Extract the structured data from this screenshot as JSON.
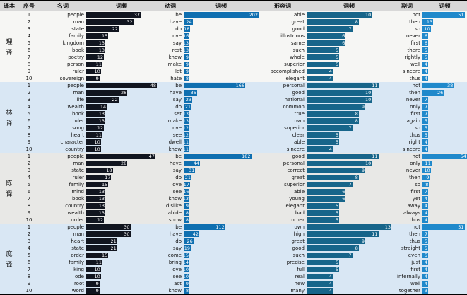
{
  "colors": {
    "noun_bar": "#11151f",
    "verb_bar": "#0f6fb0",
    "adjective_bar": "#17658a",
    "adverb_bar": "#2089cb",
    "header_bg": "#d8d8d8",
    "group_bgs": [
      "#f6f6f4",
      "#d9e7f4",
      "#e8e8e6",
      "#d9e7f4"
    ]
  },
  "chart_data": {
    "type": "table",
    "title": "",
    "columns": [
      "译本",
      "序号",
      "名词",
      "词频",
      "动词",
      "词频",
      "形容词",
      "词频",
      "副词",
      "词频"
    ],
    "axis_max": {
      "noun": 48,
      "verb": 202,
      "adjective": 13,
      "adverb": 54
    },
    "groups": [
      {
        "translator": "理译",
        "rows": [
          {
            "index": 1,
            "noun": "people",
            "noun_freq": 37,
            "verb": "be",
            "verb_freq": 202,
            "adjective": "able",
            "adjective_freq": 10,
            "adverb": "not",
            "adverb_freq": 51
          },
          {
            "index": 2,
            "noun": "man",
            "noun_freq": 32,
            "verb": "have",
            "verb_freq": 24,
            "adjective": "great",
            "adjective_freq": 8,
            "adverb": "then",
            "adverb_freq": 13
          },
          {
            "index": 3,
            "noun": "state",
            "noun_freq": 22,
            "verb": "do",
            "verb_freq": 18,
            "adjective": "good",
            "adjective_freq": 7,
            "adverb": "so",
            "adverb_freq": 10
          },
          {
            "index": 4,
            "noun": "family",
            "noun_freq": 15,
            "verb": "love",
            "verb_freq": 16,
            "adjective": "illustrious",
            "adjective_freq": 6,
            "adverb": "never",
            "adverb_freq": 6
          },
          {
            "index": 5,
            "noun": "kingdom",
            "noun_freq": 13,
            "verb": "say",
            "verb_freq": 13,
            "adjective": "same",
            "adjective_freq": 6,
            "adverb": "first",
            "adverb_freq": 6
          },
          {
            "index": 6,
            "noun": "book",
            "noun_freq": 13,
            "verb": "rest",
            "verb_freq": 13,
            "adjective": "such",
            "adjective_freq": 5,
            "adverb": "there",
            "adverb_freq": 5
          },
          {
            "index": 7,
            "noun": "poetry",
            "noun_freq": 12,
            "verb": "know",
            "verb_freq": 9,
            "adjective": "whole",
            "adjective_freq": 5,
            "adverb": "rightly",
            "adverb_freq": 5
          },
          {
            "index": 8,
            "noun": "person",
            "noun_freq": 11,
            "verb": "make",
            "verb_freq": 9,
            "adjective": "superior",
            "adjective_freq": 5,
            "adverb": "well",
            "adverb_freq": 4
          },
          {
            "index": 9,
            "noun": "ruler",
            "noun_freq": 10,
            "verb": "let",
            "verb_freq": 9,
            "adjective": "accomplished",
            "adjective_freq": 4,
            "adverb": "sincere",
            "adverb_freq": 4
          },
          {
            "index": 10,
            "noun": "sovereign",
            "noun_freq": 9,
            "verb": "hate",
            "verb_freq": 8,
            "adjective": "elegant",
            "adjective_freq": 4,
            "adverb": "thus",
            "adverb_freq": 4
          }
        ]
      },
      {
        "translator": "林译",
        "rows": [
          {
            "index": 1,
            "noun": "people",
            "noun_freq": 48,
            "verb": "be",
            "verb_freq": 166,
            "adjective": "personal",
            "adjective_freq": 11,
            "adverb": "not",
            "adverb_freq": 38
          },
          {
            "index": 2,
            "noun": "man",
            "noun_freq": 28,
            "verb": "have",
            "verb_freq": 36,
            "adjective": "good",
            "adjective_freq": 10,
            "adverb": "then",
            "adverb_freq": 26
          },
          {
            "index": 3,
            "noun": "life",
            "noun_freq": 22,
            "verb": "say",
            "verb_freq": 23,
            "adjective": "national",
            "adjective_freq": 10,
            "adverb": "never",
            "adverb_freq": 7
          },
          {
            "index": 4,
            "noun": "wealth",
            "noun_freq": 14,
            "verb": "do",
            "verb_freq": 21,
            "adjective": "common",
            "adjective_freq": 9,
            "adverb": "only",
            "adverb_freq": 7
          },
          {
            "index": 5,
            "noun": "book",
            "noun_freq": 13,
            "verb": "set",
            "verb_freq": 13,
            "adjective": "true",
            "adjective_freq": 8,
            "adverb": "first",
            "adverb_freq": 7
          },
          {
            "index": 6,
            "noun": "ruler",
            "noun_freq": 13,
            "verb": "make",
            "verb_freq": 13,
            "adjective": "own",
            "adjective_freq": 8,
            "adverb": "again",
            "adverb_freq": 5
          },
          {
            "index": 7,
            "noun": "song",
            "noun_freq": 12,
            "verb": "love",
            "verb_freq": 12,
            "adjective": "superior",
            "adjective_freq": 7,
            "adverb": "so",
            "adverb_freq": 5
          },
          {
            "index": 8,
            "noun": "heart",
            "noun_freq": 11,
            "verb": "see",
            "verb_freq": 12,
            "adjective": "clear",
            "adjective_freq": 5,
            "adverb": "thus",
            "adverb_freq": 5
          },
          {
            "index": 9,
            "noun": "character",
            "noun_freq": 10,
            "verb": "dwell",
            "verb_freq": 11,
            "adjective": "able",
            "adjective_freq": 5,
            "adverb": "right",
            "adverb_freq": 4
          },
          {
            "index": 10,
            "noun": "country",
            "noun_freq": 10,
            "verb": "know",
            "verb_freq": 11,
            "adjective": "sincere",
            "adjective_freq": 4,
            "adverb": "sincere",
            "adverb_freq": 4
          }
        ]
      },
      {
        "translator": "陈译",
        "rows": [
          {
            "index": 1,
            "noun": "people",
            "noun_freq": 47,
            "verb": "be",
            "verb_freq": 182,
            "adjective": "good",
            "adjective_freq": 11,
            "adverb": "not",
            "adverb_freq": 54
          },
          {
            "index": 2,
            "noun": "man",
            "noun_freq": 28,
            "verb": "have",
            "verb_freq": 44,
            "adjective": "personal",
            "adjective_freq": 10,
            "adverb": "only",
            "adverb_freq": 11
          },
          {
            "index": 3,
            "noun": "state",
            "noun_freq": 18,
            "verb": "say",
            "verb_freq": 31,
            "adjective": "correct",
            "adjective_freq": 9,
            "adverb": "never",
            "adverb_freq": 10
          },
          {
            "index": 4,
            "noun": "ruler",
            "noun_freq": 17,
            "verb": "do",
            "verb_freq": 21,
            "adjective": "great",
            "adjective_freq": 8,
            "adverb": "then",
            "adverb_freq": 9
          },
          {
            "index": 5,
            "noun": "family",
            "noun_freq": 15,
            "verb": "love",
            "verb_freq": 17,
            "adjective": "superior",
            "adjective_freq": 7,
            "adverb": "so",
            "adverb_freq": 8
          },
          {
            "index": 6,
            "noun": "mind",
            "noun_freq": 13,
            "verb": "see",
            "verb_freq": 16,
            "adjective": "able",
            "adjective_freq": 6,
            "adverb": "first",
            "adverb_freq": 7
          },
          {
            "index": 7,
            "noun": "book",
            "noun_freq": 13,
            "verb": "know",
            "verb_freq": 13,
            "adjective": "young",
            "adjective_freq": 6,
            "adverb": "yet",
            "adverb_freq": 4
          },
          {
            "index": 8,
            "noun": "country",
            "noun_freq": 13,
            "verb": "dislike",
            "verb_freq": 9,
            "adjective": "elegant",
            "adjective_freq": 5,
            "adverb": "away",
            "adverb_freq": 4
          },
          {
            "index": 9,
            "noun": "wealth",
            "noun_freq": 13,
            "verb": "abide",
            "verb_freq": 8,
            "adjective": "bad",
            "adjective_freq": 5,
            "adverb": "always",
            "adverb_freq": 4
          },
          {
            "index": 10,
            "noun": "order",
            "noun_freq": 12,
            "verb": "show",
            "verb_freq": 8,
            "adjective": "other",
            "adjective_freq": 5,
            "adverb": "thus",
            "adverb_freq": 4
          }
        ]
      },
      {
        "translator": "庞译",
        "rows": [
          {
            "index": 1,
            "noun": "people",
            "noun_freq": 30,
            "verb": "be",
            "verb_freq": 112,
            "adjective": "own",
            "adjective_freq": 13,
            "adverb": "not",
            "adverb_freq": 51
          },
          {
            "index": 2,
            "noun": "man",
            "noun_freq": 30,
            "verb": "have",
            "verb_freq": 42,
            "adjective": "high",
            "adjective_freq": 11,
            "adverb": "then",
            "adverb_freq": 7
          },
          {
            "index": 3,
            "noun": "heart",
            "noun_freq": 21,
            "verb": "do",
            "verb_freq": 26,
            "adjective": "great",
            "adjective_freq": 9,
            "adverb": "thus",
            "adverb_freq": 5
          },
          {
            "index": 4,
            "noun": "state",
            "noun_freq": 21,
            "verb": "say",
            "verb_freq": 19,
            "adjective": "good",
            "adjective_freq": 8,
            "adverb": "straight",
            "adverb_freq": 5
          },
          {
            "index": 5,
            "noun": "order",
            "noun_freq": 15,
            "verb": "come",
            "verb_freq": 15,
            "adjective": "such",
            "adjective_freq": 7,
            "adverb": "even",
            "adverb_freq": 5
          },
          {
            "index": 6,
            "noun": "family",
            "noun_freq": 11,
            "verb": "bring",
            "verb_freq": 14,
            "adjective": "precise",
            "adjective_freq": 5,
            "adverb": "just",
            "adverb_freq": 4
          },
          {
            "index": 7,
            "noun": "king",
            "noun_freq": 10,
            "verb": "love",
            "verb_freq": 10,
            "adjective": "full",
            "adjective_freq": 5,
            "adverb": "first",
            "adverb_freq": 4
          },
          {
            "index": 8,
            "noun": "ode",
            "noun_freq": 10,
            "verb": "see",
            "verb_freq": 10,
            "adjective": "real",
            "adjective_freq": 4,
            "adverb": "internally",
            "adverb_freq": 4
          },
          {
            "index": 9,
            "noun": "root",
            "noun_freq": 9,
            "verb": "act",
            "verb_freq": 9,
            "adjective": "new",
            "adjective_freq": 4,
            "adverb": "well",
            "adverb_freq": 4
          },
          {
            "index": 10,
            "noun": "word",
            "noun_freq": 9,
            "verb": "know",
            "verb_freq": 8,
            "adjective": "many",
            "adjective_freq": 4,
            "adverb": "together",
            "adverb_freq": 3
          }
        ]
      }
    ]
  }
}
